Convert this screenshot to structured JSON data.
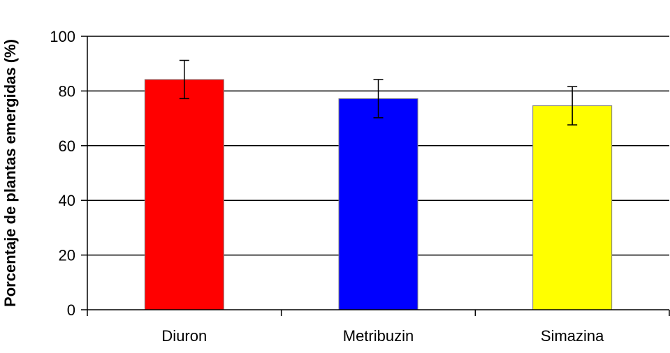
{
  "chart_data": {
    "type": "bar",
    "title": "",
    "xlabel": "",
    "ylabel": "Porcentaje de plantas emergidas (%)",
    "categories": [
      "Diuron",
      "Metribuzin",
      "Simazina"
    ],
    "values": [
      84.2,
      77.2,
      74.6
    ],
    "error_bars": [
      7.0,
      7.0,
      7.0
    ],
    "bar_colors": [
      "#ff0000",
      "#0000ff",
      "#ffff00"
    ],
    "ylim": [
      0,
      100
    ],
    "yticks": [
      0,
      20,
      40,
      60,
      80,
      100
    ],
    "ytick_labels": [
      "0",
      "20",
      "40",
      "60",
      "80",
      "100"
    ],
    "grid": "horizontal major gridlines",
    "legend": "none"
  }
}
